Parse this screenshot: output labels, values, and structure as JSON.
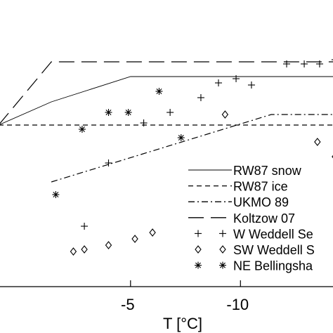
{
  "chart_data": {
    "type": "scatter",
    "xlabel": "T [°C]",
    "ylabel": "",
    "title": "",
    "x_axis_reversed": true,
    "xlim": [
      1,
      -14.4
    ],
    "ylim": [
      0,
      1
    ],
    "x_ticks": [
      {
        "value": -5,
        "label": "-5"
      },
      {
        "value": -10,
        "label": "-10"
      }
    ],
    "grid": false,
    "legend_placement": "lower-right",
    "lines": [
      {
        "name": "RW87 snow",
        "style": "solid",
        "color": "#000000",
        "points": [
          [
            1,
            0.6
          ],
          [
            -1.4,
            0.71
          ],
          [
            -5,
            0.83
          ],
          [
            -14.4,
            0.83
          ]
        ]
      },
      {
        "name": "RW87 ice",
        "style": "dashed",
        "color": "#000000",
        "points": [
          [
            1,
            0.6
          ],
          [
            -14.4,
            0.6
          ]
        ]
      },
      {
        "name": "UKMO 89",
        "style": "dashdot",
        "color": "#000000",
        "points": [
          [
            -1.4,
            0.33
          ],
          [
            -11.4,
            0.65
          ],
          [
            -14.4,
            0.65
          ]
        ]
      },
      {
        "name": "Koltzow 07",
        "style": "longdash",
        "color": "#000000",
        "points": [
          [
            1,
            0.6
          ],
          [
            -1.4,
            0.9
          ],
          [
            -14.4,
            0.9
          ]
        ]
      }
    ],
    "scatter_series": [
      {
        "name": "W Weddell Sea",
        "marker": "plus",
        "points": [
          [
            -2.9,
            0.12
          ],
          [
            -4.0,
            0.42
          ],
          [
            -5.6,
            0.61
          ],
          [
            -6.8,
            0.66
          ],
          [
            -8.2,
            0.73
          ],
          [
            -9.0,
            0.8
          ],
          [
            -9.8,
            0.82
          ],
          [
            -10.5,
            0.79
          ],
          [
            -12.1,
            0.89
          ],
          [
            -12.9,
            0.89
          ],
          [
            -13.6,
            0.89
          ],
          [
            -14.3,
            0.91
          ]
        ]
      },
      {
        "name": "SW Weddell Sea",
        "marker": "diamond",
        "points": [
          [
            -2.4,
            0.0
          ],
          [
            -2.9,
            0.01
          ],
          [
            -4.0,
            0.03
          ],
          [
            -5.2,
            0.06
          ],
          [
            -6.0,
            0.09
          ],
          [
            -6.9,
            0.15
          ],
          [
            -8.1,
            0.34
          ],
          [
            -9.3,
            0.65
          ],
          [
            -13.5,
            0.52
          ],
          [
            -14.3,
            0.45
          ]
        ]
      },
      {
        "name": "NE Bellingshausen Sea",
        "marker": "asterisk",
        "points": [
          [
            -1.6,
            0.27
          ],
          [
            -2.8,
            0.58
          ],
          [
            -4.0,
            0.66
          ],
          [
            -4.9,
            0.66
          ],
          [
            -6.3,
            0.76
          ],
          [
            -7.3,
            0.54
          ]
        ]
      }
    ],
    "legend": [
      {
        "label": "RW87 snow",
        "style": "solid"
      },
      {
        "label": "RW87 ice",
        "style": "dashed"
      },
      {
        "label": "UKMO 89",
        "style": "dashdot"
      },
      {
        "label": "Koltzow 07",
        "style": "longdash"
      },
      {
        "label": "W Weddell Se",
        "style": "plus"
      },
      {
        "label": "SW Weddell S",
        "style": "diamond"
      },
      {
        "label": "NE Bellingsha",
        "style": "asterisk"
      }
    ]
  }
}
